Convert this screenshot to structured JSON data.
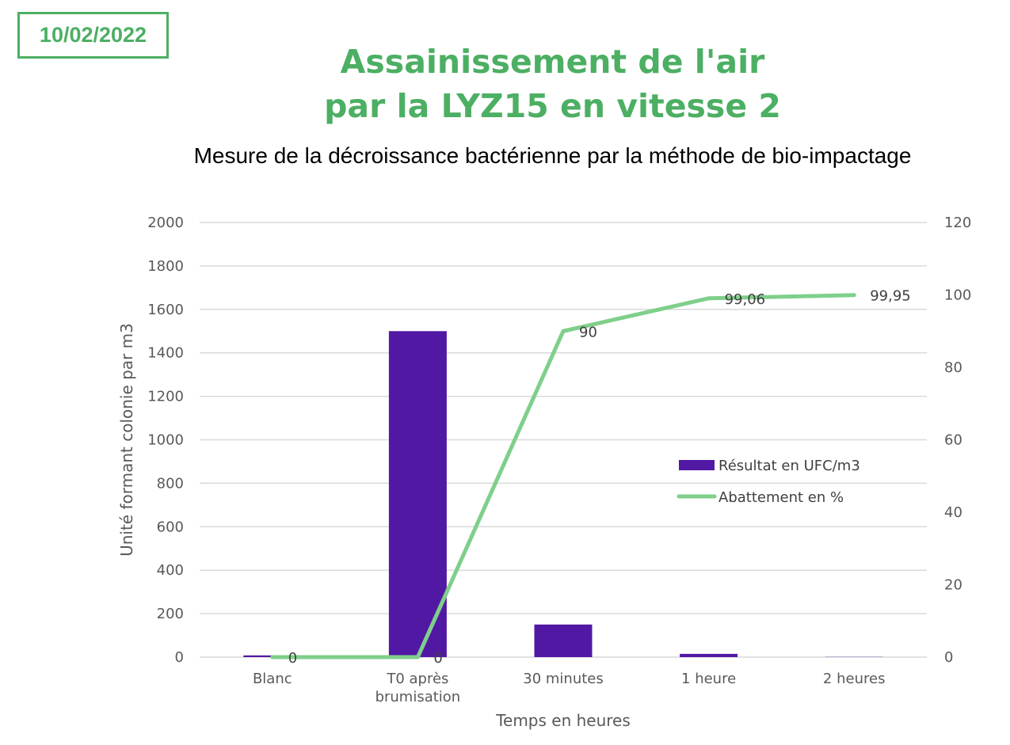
{
  "header": {
    "date": "10/02/2022",
    "title_line1": "Assainissement de l'air",
    "title_line2": "par la LYZ15 en vitesse 2",
    "subtitle": "Mesure de la décroissance bactérienne par la méthode de bio-impactage"
  },
  "colors": {
    "accent": "#4caf63",
    "bar": "#5118a4",
    "line": "#7fcf8a",
    "grid": "#d9d9d9"
  },
  "chart_data": {
    "type": "bar",
    "categories": [
      [
        "Blanc"
      ],
      [
        "T0 après",
        "brumisation"
      ],
      [
        "30 minutes"
      ],
      [
        "1 heure"
      ],
      [
        "2 heures"
      ]
    ],
    "series": [
      {
        "name": "Résultat en UFC/m3",
        "type": "bar",
        "axis": "left",
        "values": [
          8,
          1500,
          150,
          15,
          1
        ]
      },
      {
        "name": "Abattement en %",
        "type": "line",
        "axis": "right",
        "values": [
          0,
          0,
          90,
          99.06,
          99.95
        ],
        "labels": [
          "0",
          "0",
          "90",
          "99,06",
          "99,95"
        ]
      }
    ],
    "xlabel": "Temps en heures",
    "ylabel": "Unité formant colonie par m3",
    "ylim": [
      0,
      2000
    ],
    "yticks": [
      0,
      200,
      400,
      600,
      800,
      1000,
      1200,
      1400,
      1600,
      1800,
      2000
    ],
    "y2lim": [
      0,
      120
    ],
    "y2ticks": [
      0,
      20,
      40,
      60,
      80,
      100,
      120
    ],
    "grid": true,
    "legend_position": "right"
  }
}
